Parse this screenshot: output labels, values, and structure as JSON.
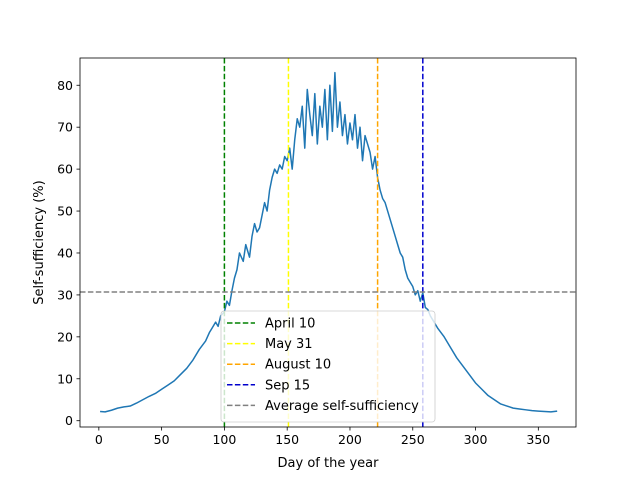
{
  "chart_data": {
    "type": "line",
    "title": "",
    "xlabel": "Day of the year",
    "ylabel": "Self-sufficiency (%)",
    "xlim": [
      -15,
      380
    ],
    "ylim": [
      -1.5,
      86.5
    ],
    "xticks": [
      0,
      50,
      100,
      150,
      200,
      250,
      300,
      350
    ],
    "yticks": [
      0,
      10,
      20,
      30,
      40,
      50,
      60,
      70,
      80
    ],
    "grid": false,
    "legend_position": "lower-center",
    "series": [
      {
        "name": "",
        "color": "#1f77b4",
        "x": [
          1,
          5,
          10,
          15,
          20,
          25,
          30,
          35,
          40,
          45,
          50,
          55,
          60,
          65,
          70,
          75,
          80,
          85,
          88,
          90,
          93,
          95,
          97,
          100,
          102,
          104,
          106,
          108,
          110,
          112,
          115,
          117,
          120,
          122,
          124,
          126,
          128,
          130,
          132,
          134,
          136,
          138,
          140,
          142,
          144,
          146,
          148,
          150,
          152,
          154,
          156,
          158,
          160,
          162,
          164,
          166,
          168,
          170,
          172,
          174,
          176,
          178,
          180,
          182,
          184,
          186,
          188,
          190,
          192,
          194,
          196,
          198,
          200,
          202,
          204,
          206,
          208,
          210,
          212,
          214,
          216,
          218,
          220,
          222,
          224,
          226,
          228,
          230,
          232,
          234,
          236,
          238,
          240,
          242,
          244,
          246,
          248,
          250,
          252,
          254,
          256,
          258,
          260,
          262,
          264,
          266,
          268,
          270,
          275,
          280,
          285,
          290,
          295,
          300,
          305,
          310,
          315,
          320,
          325,
          330,
          335,
          340,
          345,
          350,
          355,
          360,
          365
        ],
        "y": [
          2.2,
          2.1,
          2.5,
          3.0,
          3.3,
          3.5,
          4.2,
          5.0,
          5.8,
          6.5,
          7.5,
          8.5,
          9.5,
          11.0,
          12.5,
          14.5,
          17.0,
          19.0,
          21.0,
          22.0,
          23.5,
          22.5,
          25.0,
          26.0,
          28.5,
          27.5,
          31.0,
          34.0,
          36.0,
          40.0,
          38.0,
          42.0,
          39.0,
          44.0,
          47.0,
          45.0,
          46.0,
          49.0,
          52.0,
          50.0,
          55.0,
          58.0,
          60.0,
          59.0,
          61.0,
          60.0,
          63.0,
          62.0,
          65.0,
          60.0,
          67.0,
          72.0,
          70.0,
          75.0,
          65.0,
          79.0,
          73.0,
          68.0,
          78.0,
          66.0,
          75.0,
          70.0,
          79.0,
          67.0,
          80.0,
          69.0,
          83.0,
          70.0,
          76.0,
          68.0,
          73.0,
          66.0,
          71.0,
          67.0,
          73.0,
          65.0,
          70.0,
          62.0,
          68.0,
          66.0,
          64.0,
          60.0,
          63.0,
          58.0,
          55.0,
          53.0,
          52.0,
          50.0,
          48.0,
          46.0,
          44.0,
          42.0,
          40.0,
          39.0,
          36.0,
          34.0,
          33.0,
          32.0,
          30.0,
          31.0,
          28.5,
          30.5,
          27.0,
          26.5,
          25.0,
          24.0,
          23.0,
          22.0,
          20.0,
          17.5,
          15.0,
          13.0,
          11.0,
          9.0,
          7.5,
          6.0,
          5.0,
          4.0,
          3.5,
          3.0,
          2.8,
          2.6,
          2.4,
          2.3,
          2.2,
          2.1,
          2.3
        ]
      }
    ],
    "vlines": [
      {
        "name": "April 10",
        "x": 100,
        "color": "#008000"
      },
      {
        "name": "May 31",
        "x": 151,
        "color": "#ffff00"
      },
      {
        "name": "August 10",
        "x": 222,
        "color": "#ffa500"
      },
      {
        "name": "Sep 15",
        "x": 258,
        "color": "#0000cd"
      }
    ],
    "hlines": [
      {
        "name": "Average self-sufficiency",
        "y": 30.7,
        "color": "#808080"
      }
    ]
  }
}
